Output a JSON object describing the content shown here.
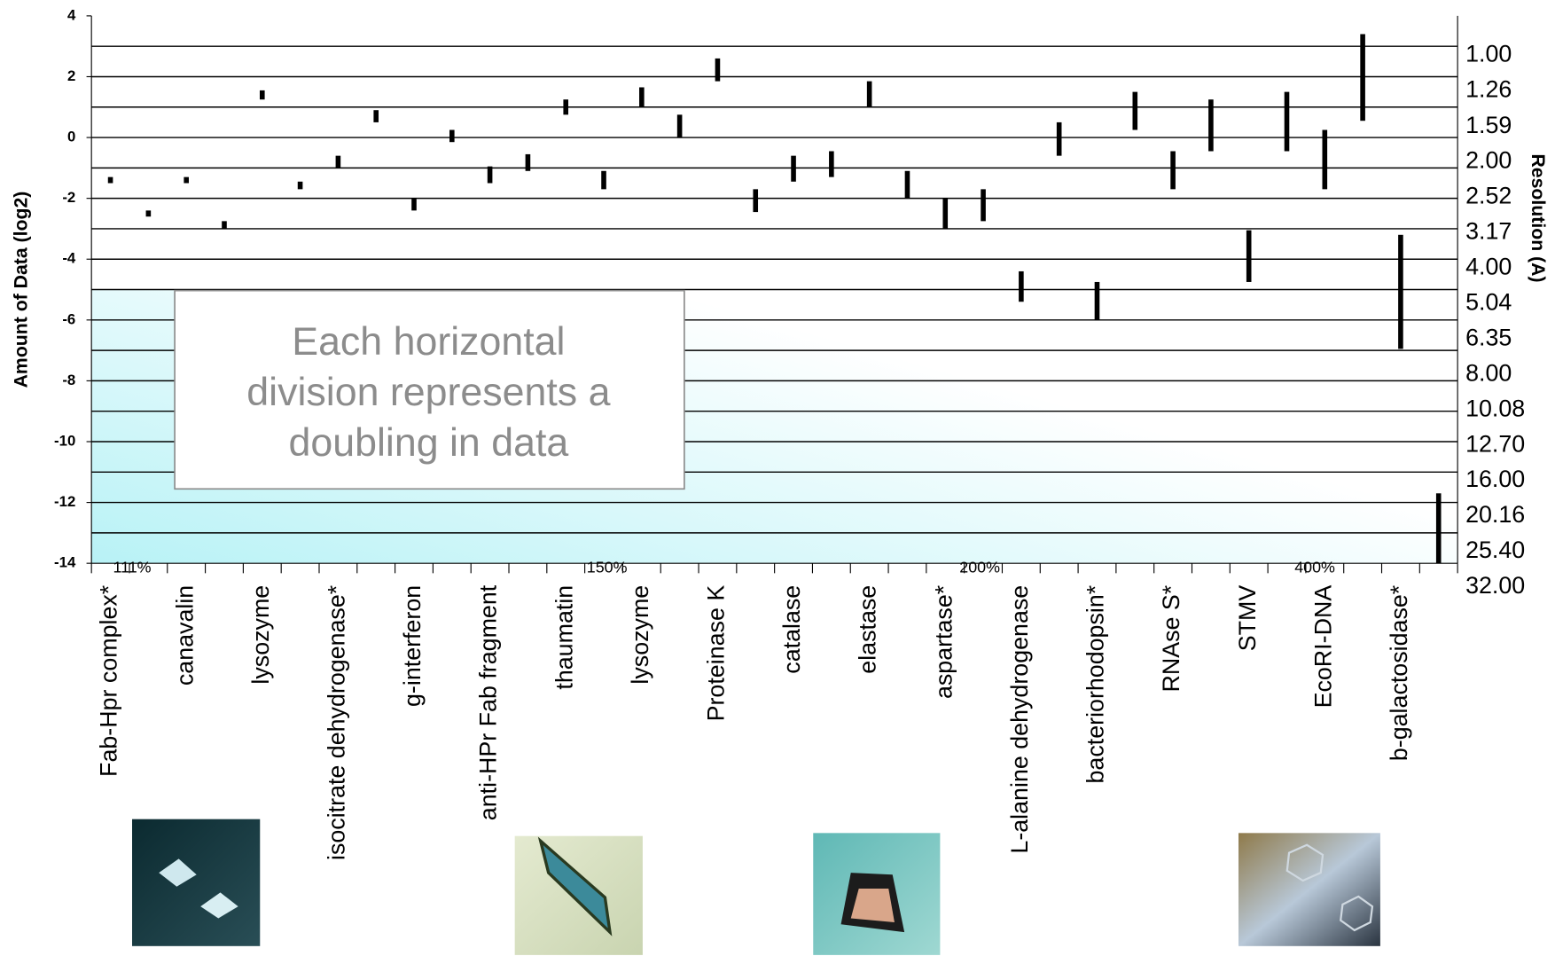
{
  "chart_data": {
    "type": "range-bar",
    "y_label": "Amount of Data (log2)",
    "y2_label": "Resolution (A)",
    "categories": [
      "Fab-Hpr complex*",
      null,
      "canavalin",
      null,
      "lysozyme",
      null,
      "isocitrate dehydrogenase*",
      null,
      "g-interferon",
      null,
      "anti-HPr Fab fragment",
      null,
      "thaumatin",
      null,
      "lysozyme",
      null,
      "Proteinase K",
      null,
      "catalase",
      null,
      "elastase",
      null,
      "aspartase*",
      null,
      "L-alanine dehydrogenase",
      null,
      "bacteriorhodopsin*",
      null,
      "RNAse S*",
      null,
      "STMV",
      null,
      "EcoRI-DNA",
      null,
      "b-galactosidase*",
      null
    ],
    "high": [
      -1.3,
      -2.4,
      -1.3,
      -2.75,
      1.55,
      -1.45,
      -0.6,
      0.9,
      -2.0,
      0.25,
      -0.95,
      -0.55,
      1.25,
      -1.1,
      1.65,
      0.75,
      2.6,
      -1.7,
      -0.6,
      -0.45,
      1.85,
      -1.1,
      -2.0,
      -1.7,
      -4.4,
      0.5,
      -4.75,
      1.5,
      -0.45,
      1.25,
      -3.05,
      1.5,
      0.25,
      3.4,
      -3.2,
      -11.7
    ],
    "low": [
      -1.5,
      -2.6,
      -1.5,
      -3.0,
      1.25,
      -1.7,
      -1.0,
      0.5,
      -2.4,
      -0.15,
      -1.5,
      -1.1,
      0.75,
      -1.7,
      1.0,
      0.0,
      1.85,
      -2.45,
      -1.45,
      -1.3,
      1.0,
      -2.0,
      -3.0,
      -2.75,
      -5.4,
      -0.6,
      -6.0,
      0.25,
      -1.7,
      -0.45,
      -4.75,
      -0.45,
      -1.7,
      0.55,
      -6.95,
      -14
    ],
    "color": "#000000",
    "ylim": [
      -14,
      4
    ],
    "yticks": [
      4,
      2,
      0,
      -2,
      -4,
      -6,
      -8,
      -10,
      -12,
      -14
    ],
    "ygrid": [
      3,
      2,
      1,
      0,
      -1,
      -2,
      -3,
      -4,
      -5,
      -6,
      -7,
      -8,
      -9,
      -10,
      -11,
      -12,
      -13
    ],
    "y2scale": "log",
    "y2lim": [
      0.772,
      27.4
    ],
    "y2ticks": [
      {
        "value": 1,
        "label": "1.00"
      },
      {
        "value": 1.26,
        "label": "1.26"
      },
      {
        "value": 1.59,
        "label": "1.59"
      },
      {
        "value": 2,
        "label": "2.00"
      },
      {
        "value": 2.52,
        "label": "2.52"
      },
      {
        "value": 3.17,
        "label": "3.17"
      },
      {
        "value": 4,
        "label": "4.00"
      },
      {
        "value": 5.04,
        "label": "5.04"
      },
      {
        "value": 6.35,
        "label": "6.35"
      },
      {
        "value": 8,
        "label": "8.00"
      },
      {
        "value": 10.08,
        "label": "10.08"
      },
      {
        "value": 12.7,
        "label": "12.70"
      },
      {
        "value": 16,
        "label": "16.00"
      },
      {
        "value": 20.16,
        "label": "20.16"
      },
      {
        "value": 25.4,
        "label": "25.40"
      },
      {
        "value": 32,
        "label": "32.00"
      }
    ],
    "percent_labels": [
      "111%",
      "150%",
      "200%",
      "400%"
    ],
    "annotation_lines": [
      "Each horizontal",
      "division represents a",
      "doubling in data"
    ]
  }
}
